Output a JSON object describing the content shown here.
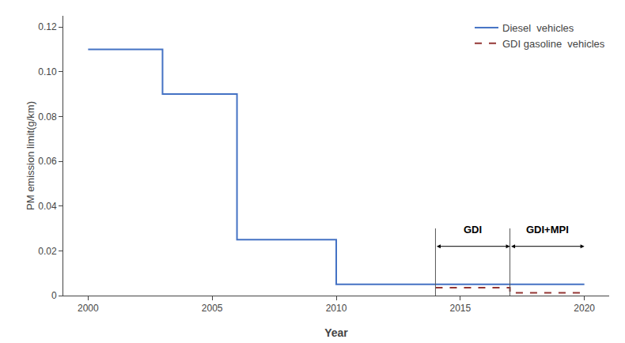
{
  "chart_data": {
    "type": "line",
    "xlabel": "Year",
    "ylabel": "PM emission limit(g/km)",
    "series": [
      {
        "name": "Diesel  vehicles",
        "color": "#4472c4",
        "line_style": "solid",
        "x": [
          2000,
          2003,
          2003,
          2006,
          2006,
          2010,
          2010,
          2020
        ],
        "values": [
          0.11,
          0.11,
          0.09,
          0.09,
          0.025,
          0.025,
          0.005,
          0.005
        ]
      },
      {
        "name": "GDI gasoline  vehicles",
        "color": "#943634",
        "line_style": "dashed",
        "x": [
          2014,
          2017,
          2017,
          2020
        ],
        "values": [
          0.0035,
          0.0035,
          0.0012,
          0.0012
        ]
      }
    ],
    "vlines": [
      {
        "x": 2014,
        "y": [
          0,
          0.03
        ],
        "color": "#555555"
      },
      {
        "x": 2017,
        "y": [
          0,
          0.03
        ],
        "color": "#555555"
      }
    ],
    "spans": [
      {
        "x": [
          2014,
          2017
        ],
        "y": 0.022,
        "color": "black"
      },
      {
        "x": [
          2017,
          2020
        ],
        "y": 0.022,
        "color": "black"
      }
    ],
    "annotations": [
      {
        "text": "GDI",
        "x": 2015.5,
        "y": 0.026
      },
      {
        "text": "GDI+MPI",
        "x": 2018.5,
        "y": 0.026
      }
    ],
    "xlim": [
      1999,
      2021
    ],
    "ylim": [
      0,
      0.125
    ],
    "xticks": [
      2000,
      2005,
      2010,
      2015,
      2020
    ],
    "yticks": [
      0,
      0.02,
      0.04,
      0.06,
      0.08,
      {
        "value": 0.1,
        "label": "0.10"
      },
      0.12
    ],
    "grid": false,
    "legend": "upper right"
  }
}
